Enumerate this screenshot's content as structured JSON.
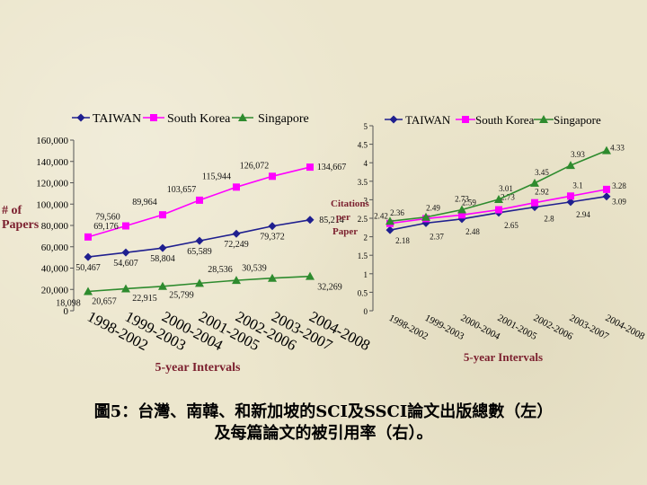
{
  "caption": {
    "line1": "圖5：台灣、南韓、和新加坡的SCI及SSCI論文出版總數（左）",
    "line2": "及每篇論文的被引用率（右）。"
  },
  "colors": {
    "taiwan": "#1f1f8f",
    "south_korea": "#ff00ff",
    "singapore": "#2e8b2e",
    "axis_title": "#7b1f2e"
  },
  "chart_data": [
    {
      "type": "line",
      "ylabel": "# of Papers",
      "xlabel": "5-year Intervals",
      "ylim": [
        0,
        160000
      ],
      "yticks": [
        "0",
        "20,000",
        "40,000",
        "60,000",
        "80,000",
        "100,000",
        "120,000",
        "140,000",
        "160,000"
      ],
      "categories": [
        "1998-2002",
        "1999-2003",
        "2000-2004",
        "2001-2005",
        "2002-2006",
        "2003-2007",
        "2004-2008"
      ],
      "legend": "top",
      "grid": false,
      "series": [
        {
          "name": "TAIWAN",
          "marker": "diamond",
          "values": [
            50467,
            54607,
            58804,
            65589,
            72249,
            79372,
            85214
          ],
          "labels": [
            "50,467",
            "54,607",
            "58,804",
            "65,589",
            "72,249",
            "79,372",
            "85,214"
          ]
        },
        {
          "name": "South Korea",
          "marker": "square",
          "values": [
            69176,
            79560,
            89964,
            103657,
            115944,
            126072,
            134667
          ],
          "labels": [
            "69,176",
            "79,560",
            "89,964",
            "103,657",
            "115,944",
            "126,072",
            "134,667"
          ]
        },
        {
          "name": "Singapore",
          "marker": "triangle",
          "values": [
            18098,
            20657,
            22915,
            25799,
            28536,
            30539,
            32269
          ],
          "labels": [
            "18,098",
            "20,657",
            "22,915",
            "25,799",
            "28,536",
            "30,539",
            "32,269"
          ]
        }
      ]
    },
    {
      "type": "line",
      "ylabel_lines": [
        "Citations",
        "per",
        "Paper"
      ],
      "xlabel": "5-year Intervals",
      "ylim": [
        0,
        5
      ],
      "yticks": [
        "0",
        "0.5",
        "1",
        "1.5",
        "2",
        "2.5",
        "3",
        "3.5",
        "4",
        "4.5",
        "5"
      ],
      "categories": [
        "1998-2002",
        "1999-2003",
        "2000-2004",
        "2001-2005",
        "2002-2006",
        "2003-2007",
        "2004-2008"
      ],
      "legend": "top",
      "grid": false,
      "series": [
        {
          "name": "TAIWAN",
          "marker": "diamond",
          "values": [
            2.18,
            2.37,
            2.48,
            2.65,
            2.8,
            2.94,
            3.09
          ],
          "labels": [
            "2.18",
            "2.37",
            "2.48",
            "2.65",
            "2.8",
            "2.94",
            "3.09"
          ]
        },
        {
          "name": "South Korea",
          "marker": "square",
          "values": [
            2.36,
            2.49,
            2.59,
            2.73,
            2.92,
            3.1,
            3.28
          ],
          "labels": [
            "2.36",
            "2.49",
            "2.59",
            "2.73",
            "2.92",
            "3.1",
            "3.28"
          ]
        },
        {
          "name": "Singapore",
          "marker": "triangle",
          "values": [
            2.42,
            2.53,
            2.73,
            3.01,
            3.45,
            3.93,
            4.33
          ],
          "labels": [
            "2.42",
            "",
            "2.73",
            "3.01",
            "3.45",
            "3.93",
            "4.33"
          ]
        }
      ]
    }
  ]
}
